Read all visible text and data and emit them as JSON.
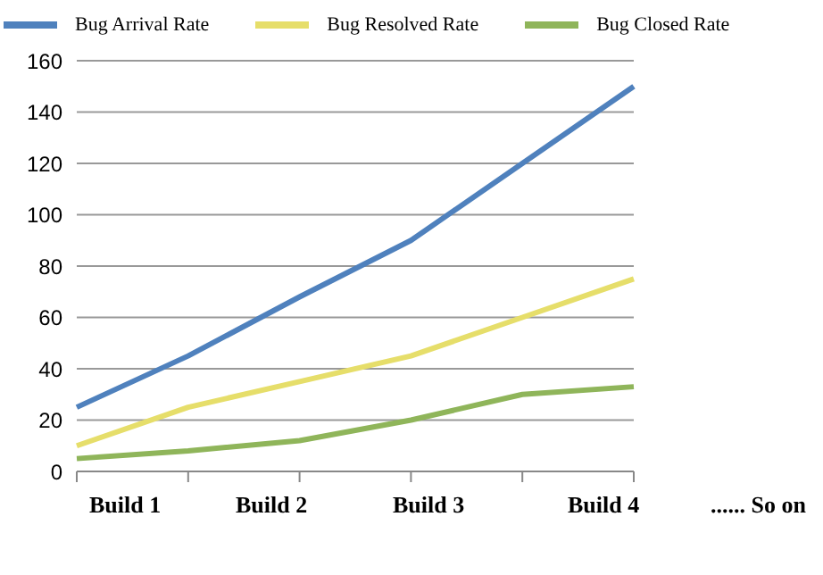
{
  "chart_data": {
    "type": "line",
    "categories": [
      null,
      null,
      null,
      null,
      null,
      null
    ],
    "series": [
      {
        "name": "Bug Arrival Rate",
        "color": "#4f81bd",
        "values": [
          25,
          45,
          68,
          90,
          120,
          150
        ]
      },
      {
        "name": "Bug Resolved Rate",
        "color": "#e6de6a",
        "values": [
          10,
          25,
          35,
          45,
          60,
          75
        ]
      },
      {
        "name": "Bug Closed Rate",
        "color": "#8fb55a",
        "values": [
          5,
          8,
          12,
          20,
          30,
          33
        ]
      }
    ],
    "ylim": [
      0,
      160
    ],
    "yticks": [
      0,
      20,
      40,
      60,
      80,
      100,
      120,
      140,
      160
    ],
    "grid": "y",
    "legend": "top",
    "marker": "none",
    "line_style": "solid",
    "annotations": [
      "Build 1",
      "Build 2",
      "Build 3",
      "Build 4",
      "...... So on"
    ]
  }
}
